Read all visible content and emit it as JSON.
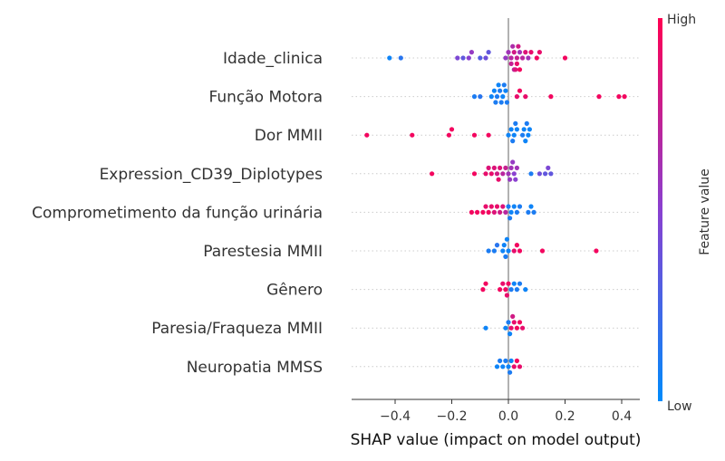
{
  "chart_data": {
    "type": "scatter",
    "subtype": "shap-beeswarm",
    "title": "",
    "xlabel": "SHAP value (impact on model output)",
    "xlim": [
      -0.54,
      0.46
    ],
    "xticks": [
      -0.4,
      -0.2,
      0.0,
      0.2,
      0.4
    ],
    "xtick_labels": [
      "−0.4",
      "−0.2",
      "0.0",
      "0.2",
      "0.4"
    ],
    "colorbar": {
      "title": "Feature value",
      "high_label": "High",
      "low_label": "Low",
      "low_color": "#008bfb",
      "high_color": "#ff0052"
    },
    "features": [
      {
        "name": "Idade_clinica",
        "points": [
          [
            -0.42,
            0.05
          ],
          [
            -0.38,
            0.15
          ],
          [
            -0.18,
            0.45
          ],
          [
            -0.16,
            0.35
          ],
          [
            -0.14,
            0.5
          ],
          [
            -0.13,
            0.55
          ],
          [
            -0.1,
            0.3
          ],
          [
            -0.08,
            0.4
          ],
          [
            -0.07,
            0.35
          ],
          [
            -0.01,
            0.55
          ],
          [
            0.0,
            0.6
          ],
          [
            0.01,
            0.7
          ],
          [
            0.01,
            0.75
          ],
          [
            0.015,
            0.65
          ],
          [
            0.02,
            0.8
          ],
          [
            0.02,
            0.7
          ],
          [
            0.025,
            0.85
          ],
          [
            0.03,
            0.75
          ],
          [
            0.03,
            0.9
          ],
          [
            0.035,
            0.8
          ],
          [
            0.04,
            0.6
          ],
          [
            0.04,
            0.95
          ],
          [
            0.05,
            0.7
          ],
          [
            0.06,
            0.85
          ],
          [
            0.07,
            0.6
          ],
          [
            0.08,
            0.9
          ],
          [
            0.1,
            0.95
          ],
          [
            0.11,
            0.9
          ],
          [
            0.2,
            0.95
          ]
        ]
      },
      {
        "name": "Função Motora",
        "points": [
          [
            -0.12,
            0.1
          ],
          [
            -0.1,
            0.15
          ],
          [
            -0.06,
            0.05
          ],
          [
            -0.05,
            0.05
          ],
          [
            -0.045,
            0.1
          ],
          [
            -0.04,
            0.1
          ],
          [
            -0.035,
            0.05
          ],
          [
            -0.03,
            0.1
          ],
          [
            -0.025,
            0.1
          ],
          [
            -0.02,
            0.05
          ],
          [
            -0.015,
            0.1
          ],
          [
            -0.01,
            0.05
          ],
          [
            -0.005,
            0.1
          ],
          [
            0.03,
            0.9
          ],
          [
            0.04,
            0.95
          ],
          [
            0.06,
            0.9
          ],
          [
            0.15,
            0.95
          ],
          [
            0.32,
            0.95
          ],
          [
            0.39,
            0.95
          ],
          [
            0.41,
            0.95
          ]
        ]
      },
      {
        "name": "Dor MMII",
        "points": [
          [
            -0.5,
            0.95
          ],
          [
            -0.34,
            0.95
          ],
          [
            -0.21,
            0.95
          ],
          [
            -0.2,
            0.95
          ],
          [
            -0.12,
            0.95
          ],
          [
            -0.07,
            0.95
          ],
          [
            0.0,
            0.05
          ],
          [
            0.01,
            0.05
          ],
          [
            0.015,
            0.1
          ],
          [
            0.02,
            0.05
          ],
          [
            0.025,
            0.1
          ],
          [
            0.03,
            0.05
          ],
          [
            0.05,
            0.1
          ],
          [
            0.055,
            0.05
          ],
          [
            0.06,
            0.05
          ],
          [
            0.065,
            0.1
          ],
          [
            0.07,
            0.05
          ],
          [
            0.075,
            0.05
          ]
        ]
      },
      {
        "name": "Expression_CD39_Diplotypes",
        "points": [
          [
            -0.27,
            0.95
          ],
          [
            -0.12,
            0.95
          ],
          [
            -0.08,
            0.9
          ],
          [
            -0.07,
            0.85
          ],
          [
            -0.06,
            0.9
          ],
          [
            -0.05,
            0.85
          ],
          [
            -0.04,
            0.8
          ],
          [
            -0.035,
            0.9
          ],
          [
            -0.03,
            0.85
          ],
          [
            -0.02,
            0.7
          ],
          [
            -0.01,
            0.75
          ],
          [
            0.0,
            0.6
          ],
          [
            0.005,
            0.55
          ],
          [
            0.01,
            0.6
          ],
          [
            0.015,
            0.55
          ],
          [
            0.02,
            0.5
          ],
          [
            0.025,
            0.5
          ],
          [
            0.03,
            0.6
          ],
          [
            0.08,
            0.1
          ],
          [
            0.11,
            0.4
          ],
          [
            0.13,
            0.35
          ],
          [
            0.14,
            0.45
          ],
          [
            0.15,
            0.35
          ]
        ]
      },
      {
        "name": "Comprometimento da função urinária",
        "points": [
          [
            -0.13,
            0.95
          ],
          [
            -0.11,
            0.95
          ],
          [
            -0.09,
            0.95
          ],
          [
            -0.08,
            0.9
          ],
          [
            -0.07,
            0.95
          ],
          [
            -0.06,
            0.9
          ],
          [
            -0.05,
            0.85
          ],
          [
            -0.04,
            0.9
          ],
          [
            -0.03,
            0.8
          ],
          [
            -0.02,
            0.85
          ],
          [
            -0.01,
            0.7
          ],
          [
            0.0,
            0.1
          ],
          [
            0.005,
            0.1
          ],
          [
            0.01,
            0.05
          ],
          [
            0.02,
            0.05
          ],
          [
            0.03,
            0.1
          ],
          [
            0.04,
            0.1
          ],
          [
            0.07,
            0.1
          ],
          [
            0.08,
            0.05
          ],
          [
            0.09,
            0.1
          ]
        ]
      },
      {
        "name": "Parestesia MMII",
        "points": [
          [
            -0.07,
            0.1
          ],
          [
            -0.05,
            0.1
          ],
          [
            -0.04,
            0.15
          ],
          [
            -0.02,
            0.05
          ],
          [
            -0.015,
            0.05
          ],
          [
            -0.01,
            0.1
          ],
          [
            -0.005,
            0.05
          ],
          [
            0.0,
            0.05
          ],
          [
            0.02,
            0.9
          ],
          [
            0.03,
            0.95
          ],
          [
            0.04,
            0.95
          ],
          [
            0.12,
            0.95
          ],
          [
            0.31,
            0.95
          ]
        ]
      },
      {
        "name": "Gênero",
        "points": [
          [
            -0.09,
            0.95
          ],
          [
            -0.08,
            0.95
          ],
          [
            -0.03,
            0.95
          ],
          [
            -0.02,
            0.9
          ],
          [
            -0.01,
            0.95
          ],
          [
            -0.005,
            0.9
          ],
          [
            0.0,
            0.95
          ],
          [
            0.01,
            0.1
          ],
          [
            0.02,
            0.05
          ],
          [
            0.03,
            0.1
          ],
          [
            0.04,
            0.1
          ],
          [
            0.06,
            0.05
          ]
        ]
      },
      {
        "name": "Paresia/Fraqueza MMII",
        "points": [
          [
            -0.08,
            0.05
          ],
          [
            -0.01,
            0.05
          ],
          [
            0.0,
            0.1
          ],
          [
            0.005,
            0.05
          ],
          [
            0.01,
            0.9
          ],
          [
            0.015,
            0.8
          ],
          [
            0.02,
            0.9
          ],
          [
            0.03,
            0.95
          ],
          [
            0.04,
            0.95
          ],
          [
            0.05,
            0.9
          ]
        ]
      },
      {
        "name": "Neuropatia MMSS",
        "points": [
          [
            -0.04,
            0.05
          ],
          [
            -0.03,
            0.1
          ],
          [
            -0.02,
            0.05
          ],
          [
            -0.01,
            0.1
          ],
          [
            0.0,
            0.05
          ],
          [
            0.005,
            0.1
          ],
          [
            0.01,
            0.05
          ],
          [
            0.02,
            0.9
          ],
          [
            0.03,
            0.95
          ],
          [
            0.04,
            0.9
          ]
        ]
      }
    ]
  }
}
